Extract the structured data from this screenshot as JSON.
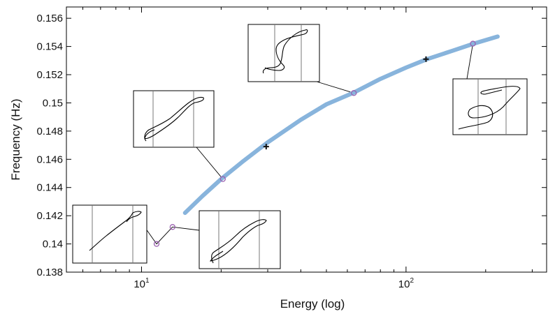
{
  "chart_data": {
    "type": "line",
    "xlabel": "Energy (log)",
    "ylabel": "Frequency (Hz)",
    "xscale": "log",
    "xlim": [
      5.2,
      340
    ],
    "ylim": [
      0.138,
      0.1568
    ],
    "grid": false,
    "legend": "none",
    "x_ticks": [
      {
        "value": 10,
        "label": "10",
        "sup": "1"
      },
      {
        "value": 100,
        "label": "10",
        "sup": "2"
      }
    ],
    "y_ticks": [
      {
        "value": 0.138,
        "label": "0.138"
      },
      {
        "value": 0.14,
        "label": "0.14"
      },
      {
        "value": 0.142,
        "label": "0.142"
      },
      {
        "value": 0.144,
        "label": "0.144"
      },
      {
        "value": 0.146,
        "label": "0.146"
      },
      {
        "value": 0.148,
        "label": "0.148"
      },
      {
        "value": 0.15,
        "label": "0.15"
      },
      {
        "value": 0.152,
        "label": "0.152"
      },
      {
        "value": 0.154,
        "label": "0.154"
      },
      {
        "value": 0.156,
        "label": "0.156"
      }
    ],
    "series": [
      {
        "color": "#88b4dc",
        "x": [
          14.6,
          17,
          20,
          24,
          30,
          40,
          50,
          63,
          80,
          100,
          120,
          150,
          180,
          222
        ],
        "y": [
          0.1422,
          0.1434,
          0.1446,
          0.1458,
          0.1472,
          0.1488,
          0.1499,
          0.1507,
          0.1517,
          0.1525,
          0.1531,
          0.1537,
          0.1542,
          0.1547
        ]
      },
      {
        "color": "#111111",
        "x": [
          11.4,
          13.1
        ],
        "y": [
          0.14,
          0.1412
        ]
      }
    ],
    "circle_markers": {
      "color": "#9a5fb0",
      "points": [
        {
          "x": 11.4,
          "y": 0.14
        },
        {
          "x": 13.1,
          "y": 0.1412
        },
        {
          "x": 20.3,
          "y": 0.1446
        },
        {
          "x": 63.5,
          "y": 0.1507
        },
        {
          "x": 179,
          "y": 0.1542
        }
      ]
    },
    "plus_markers": {
      "color": "#111111",
      "points": [
        {
          "x": 29.6,
          "y": 0.1469
        },
        {
          "x": 119,
          "y": 0.1531
        }
      ]
    },
    "inset_plots": [
      {
        "anchor_point": 0
      },
      {
        "anchor_point": 1
      },
      {
        "anchor_point": 2
      },
      {
        "anchor_point": 3
      },
      {
        "anchor_point": 4
      }
    ]
  }
}
